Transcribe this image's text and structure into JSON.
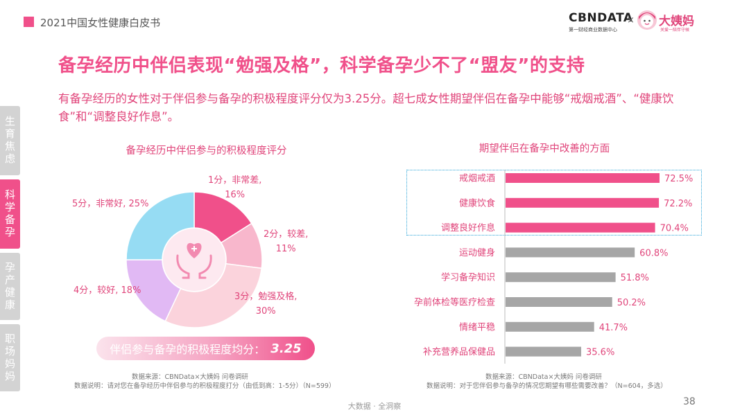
{
  "header": {
    "report_title": "2021中国女性健康白皮书"
  },
  "logos": {
    "cbn_name": "CBNDATA",
    "cbn_tagline": "第一财经商业数据中心",
    "separator": "×",
    "dym_name": "大姨妈",
    "dym_tagline": "关爱一陪伴守候"
  },
  "sidebar": {
    "items": [
      {
        "label": "生育焦虑",
        "active": false
      },
      {
        "label": "科学备孕",
        "active": true
      },
      {
        "label": "孕产健康",
        "active": false
      },
      {
        "label": "职场妈妈",
        "active": false
      }
    ]
  },
  "main": {
    "title": "备孕经历中伴侣表现“勉强及格”，科学备孕少不了“盟友”的支持",
    "subtitle": "有备孕经历的女性对于伴侣参与备孕的积极程度评分仅为3.25分。超七成女性期望伴侣在备孕中能够“戒烟戒酒”、“健康饮食”和“调整良好作息”。"
  },
  "chart_data": [
    {
      "type": "pie",
      "title": "备孕经历中伴侣参与的积极程度评分",
      "slices": [
        {
          "line1": "1分，非常差,",
          "line2": "16%",
          "value": 16,
          "color": "#f0508a"
        },
        {
          "line1": "2分，较差,",
          "line2": "11%",
          "value": 11,
          "color": "#f8b7cc"
        },
        {
          "line1": "3分，勉强及格,",
          "line2": "30%",
          "value": 30,
          "color": "#fbd3dc"
        },
        {
          "line1": "4分，较好, 18%",
          "line2": "",
          "value": 18,
          "color": "#e1b9f4"
        },
        {
          "line1": "5分，非常好, 25%",
          "line2": "",
          "value": 25,
          "color": "#96dcf3"
        }
      ],
      "average_label": "伴侣参与备孕的积极程度均分：",
      "average_value": "3.25"
    },
    {
      "type": "bar",
      "orientation": "horizontal",
      "title": "期望伴侣在备孕中改善的方面",
      "categories": [
        "戒烟戒酒",
        "健康饮食",
        "调整良好作息",
        "运动健身",
        "学习备孕知识",
        "孕前体检等医疗检查",
        "情绪平稳",
        "补充营养品保健品"
      ],
      "values": [
        72.5,
        72.2,
        70.4,
        60.8,
        51.8,
        50.2,
        41.7,
        35.6
      ],
      "value_labels": [
        "72.5%",
        "72.2%",
        "70.4%",
        "60.8%",
        "51.8%",
        "50.2%",
        "41.7%",
        "35.6%"
      ],
      "highlight_count": 3,
      "highlight_color": "#f0508a",
      "base_color": "#a6a6a6"
    }
  ],
  "notes": {
    "left_source": "数据来源：CBNData×大姨妈 问卷调研",
    "left_explain": "数据说明：请对您在备孕经历中伴侣参与的积极程度打分（由低到高：1-5分）（N=599）",
    "right_source": "数据来源：CBNData×大姨妈 问卷调研",
    "right_explain": "数据说明：对于您伴侣参与备孕的情况您期望有哪些需要改善？（N=604，多选）"
  },
  "footer": {
    "center": "大数据 · 全洞察",
    "page": "38"
  }
}
